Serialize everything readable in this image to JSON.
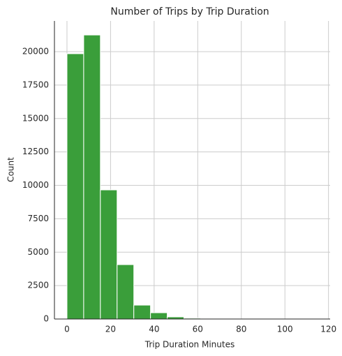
{
  "chart_data": {
    "type": "histogram",
    "title": "Number of Trips by Trip Duration",
    "xlabel": "Trip Duration Minutes",
    "ylabel": "Count",
    "bins": [
      0,
      7.67,
      15.33,
      23,
      30.67,
      38.33,
      46,
      53.67,
      61.33,
      69,
      76.67,
      84.33,
      92,
      99.67,
      107.33,
      115
    ],
    "counts": [
      19850,
      21250,
      9660,
      4070,
      1040,
      470,
      160,
      60,
      30,
      15,
      10,
      5,
      5,
      3,
      2
    ],
    "color": "#3a9e3a",
    "xlim": [
      -5.75,
      120.75
    ],
    "xticks": [
      0,
      20,
      40,
      60,
      80,
      100,
      120
    ],
    "ylim": [
      0,
      22300
    ],
    "yticks": [
      0,
      2500,
      5000,
      7500,
      10000,
      12500,
      15000,
      17500,
      20000
    ],
    "grid": true
  }
}
